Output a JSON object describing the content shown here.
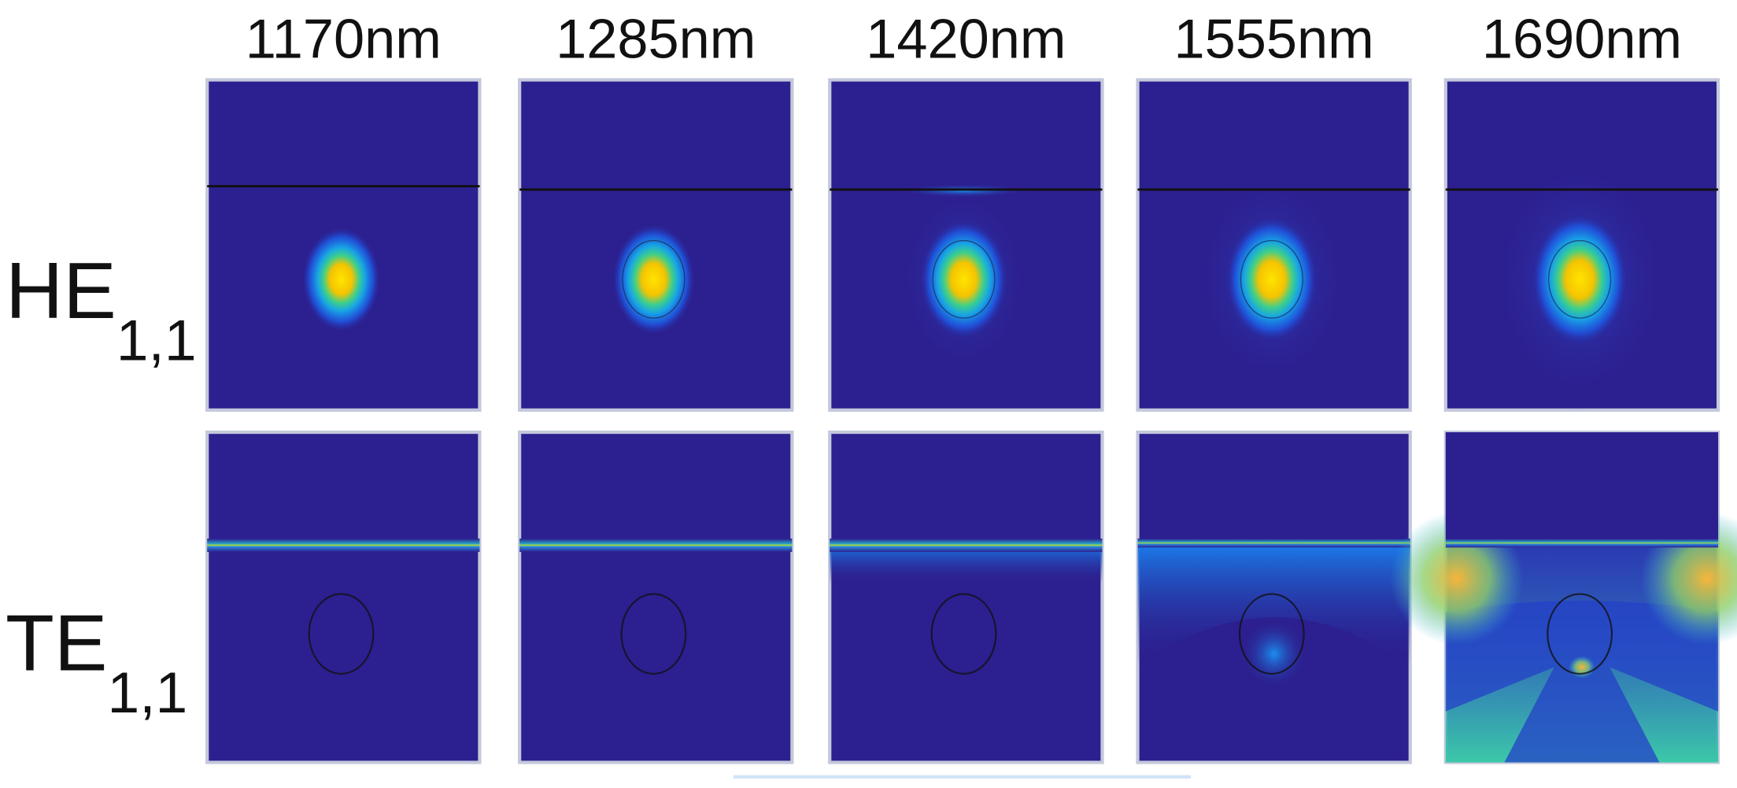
{
  "columns": [
    "1170nm",
    "1285nm",
    "1420nm",
    "1555nm",
    "1690nm"
  ],
  "rows": [
    {
      "label": "HE",
      "subscript": "1,1"
    },
    {
      "label": "TE",
      "subscript": "1,1"
    }
  ]
}
